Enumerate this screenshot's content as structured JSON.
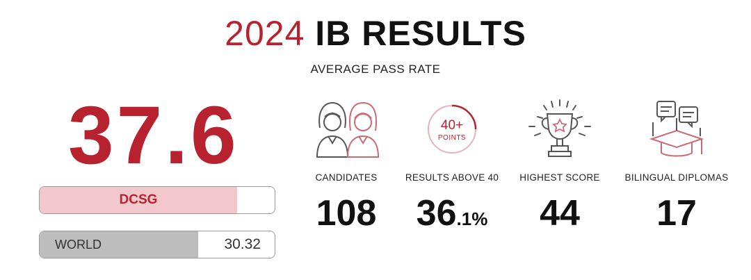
{
  "header": {
    "year": "2024",
    "title_rest": "IB RESULTS",
    "subtitle": "AVERAGE PASS RATE"
  },
  "pass_rate": {
    "value": "37.6",
    "dcsg_label": "DCSG",
    "dcsg_fraction": 0.84,
    "world_label": "WORLD",
    "world_value": "30.32",
    "world_fraction": 0.675
  },
  "stats": [
    {
      "icon": "candidates-icon",
      "label": "CANDIDATES",
      "value": "108"
    },
    {
      "icon": "points-badge-icon",
      "badge_main": "40+",
      "badge_sub": "POINTS",
      "label": "RESULTS ABOVE 40",
      "value_int": "36",
      "value_dec": ".1%"
    },
    {
      "icon": "trophy-icon",
      "label": "HIGHEST SCORE",
      "value": "44"
    },
    {
      "icon": "bilingual-diploma-icon",
      "label": "BILINGUAL DIPLOMAS",
      "value": "17"
    }
  ],
  "colors": {
    "accent": "#b8222f",
    "accent_light": "#f2c8cd",
    "world_fill": "#bdbdbd",
    "icon_outline": "#555555"
  }
}
